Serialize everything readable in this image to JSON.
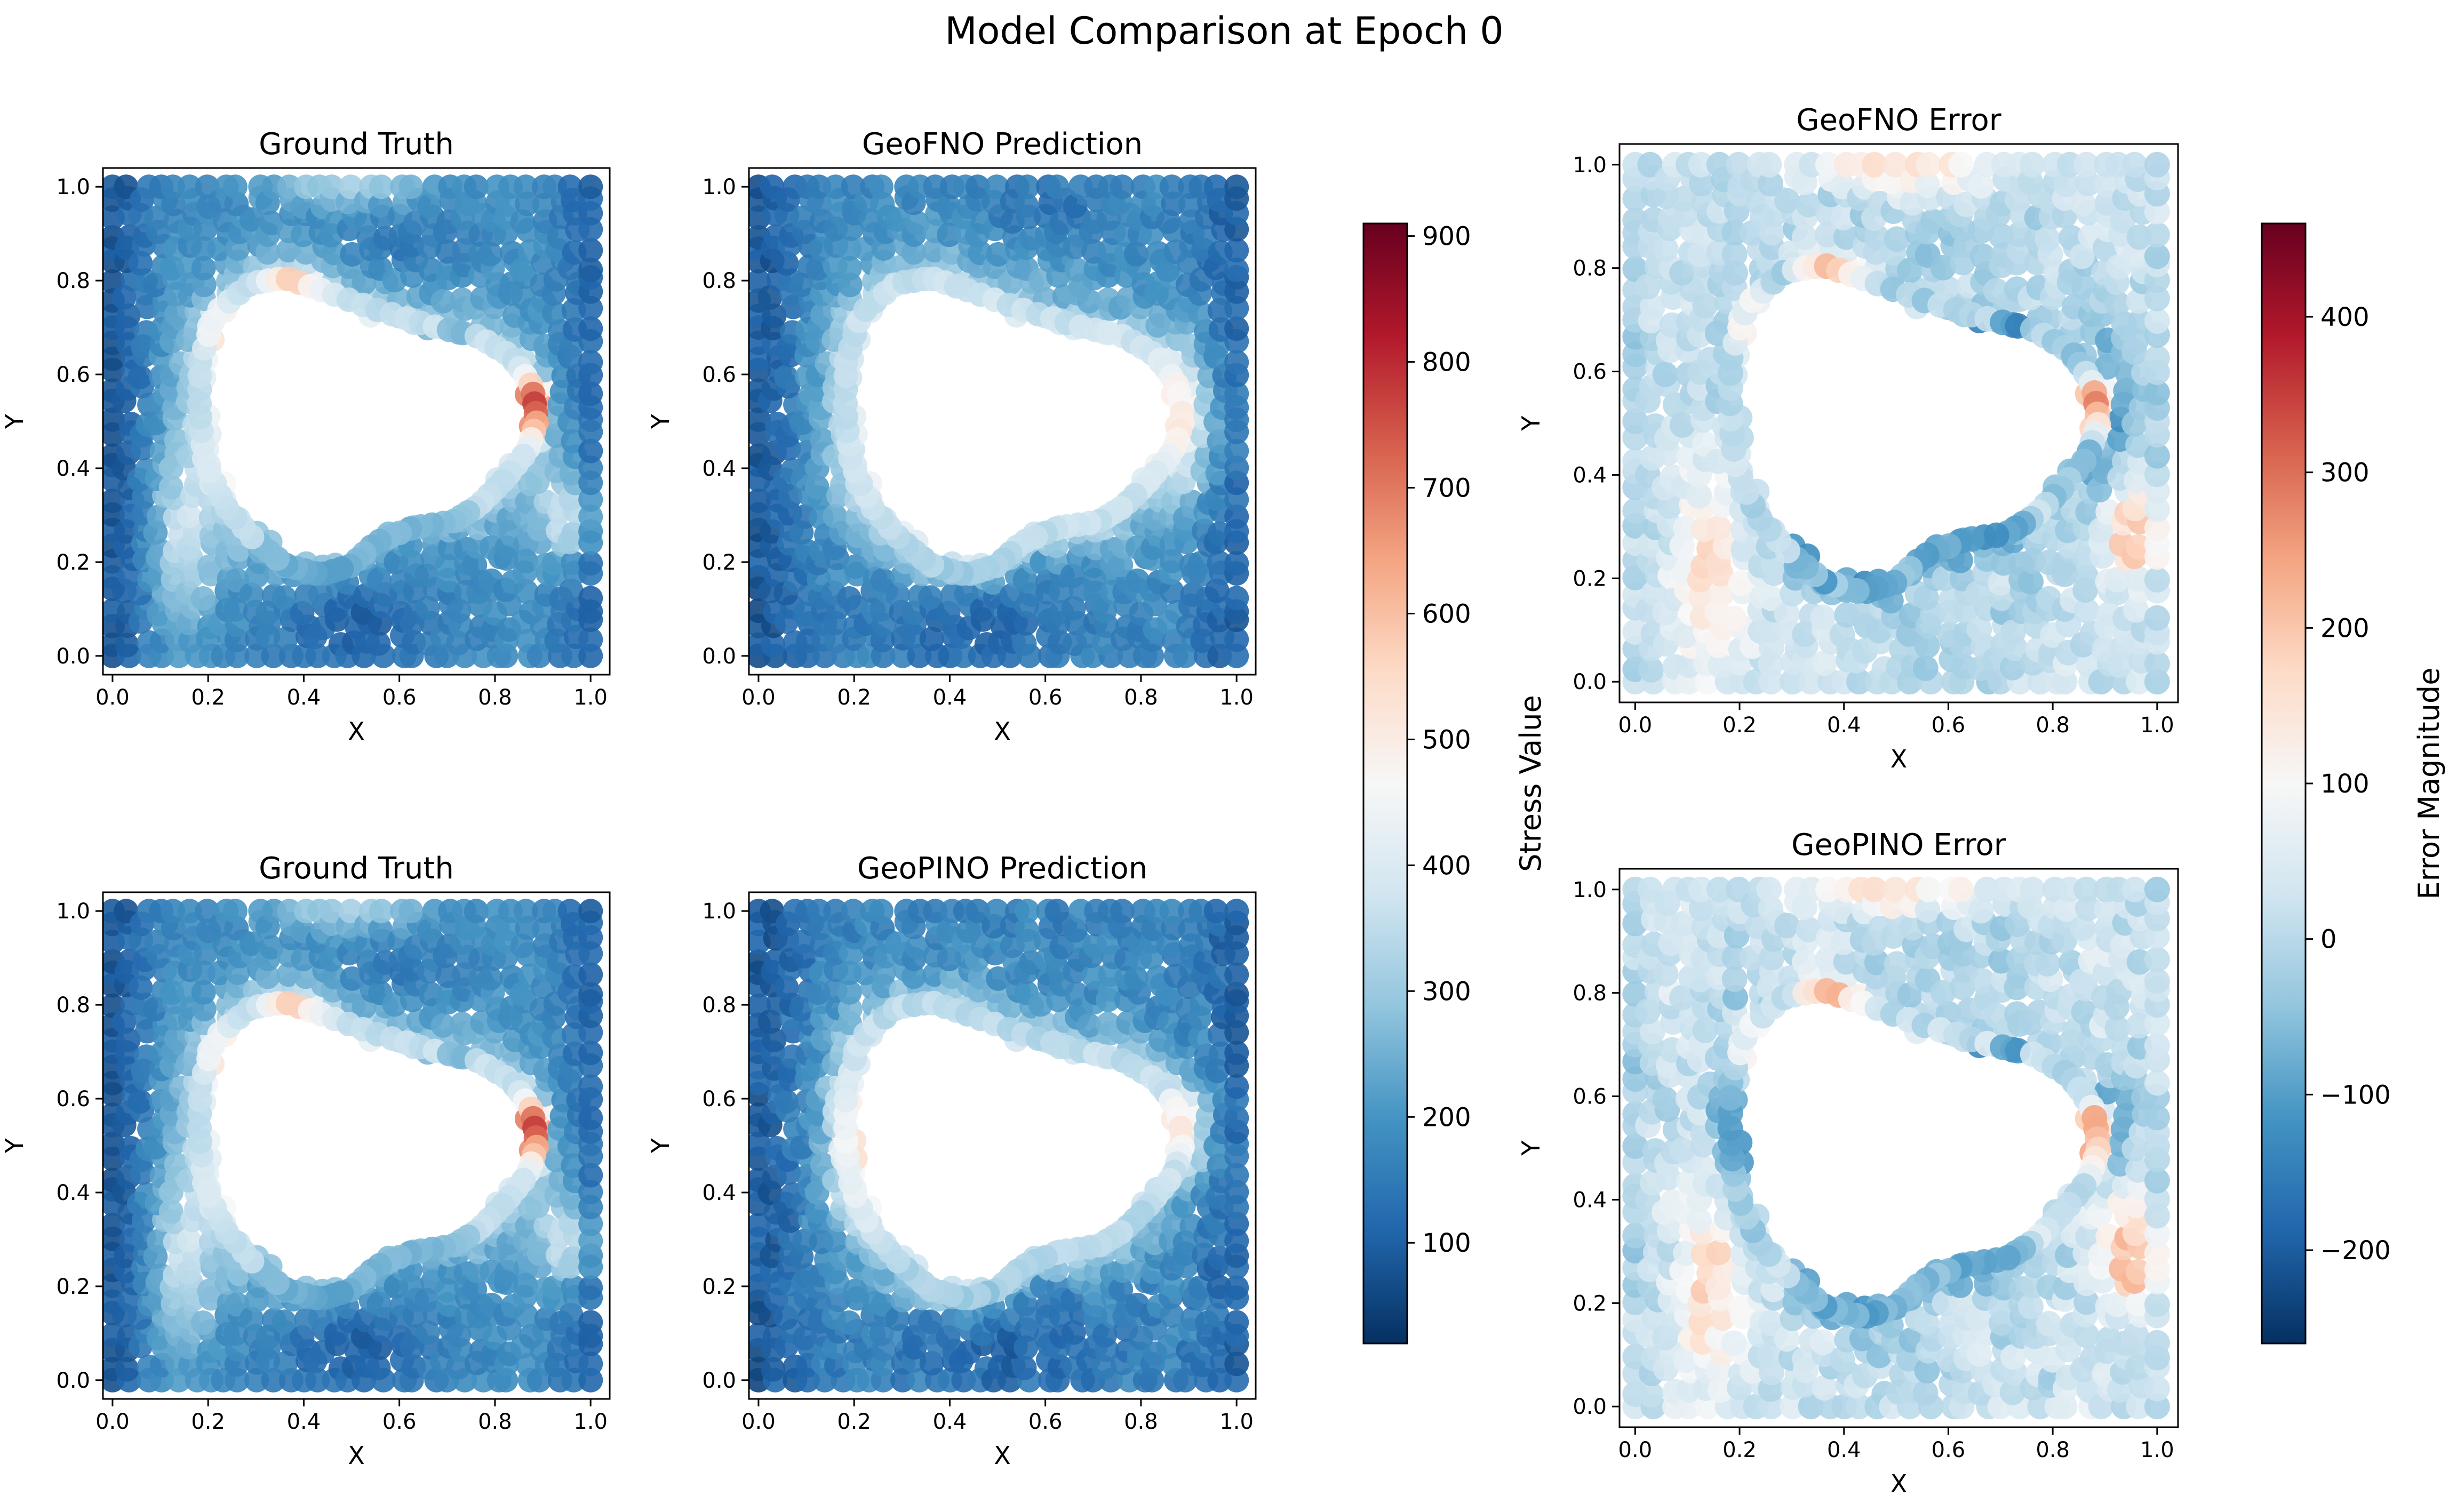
{
  "figure": {
    "title": "Model Comparison at Epoch 0"
  },
  "colors": {
    "rdbu": [
      "#053061",
      "#2166ac",
      "#4393c3",
      "#92c5de",
      "#d1e5f0",
      "#f7f7f7",
      "#fddbc7",
      "#f4a582",
      "#d6604d",
      "#b2182b",
      "#67001f"
    ]
  },
  "chart_data": [
    {
      "id": "gt_top",
      "type": "scatter",
      "title": "Ground Truth",
      "xlabel": "X",
      "ylabel": "Y",
      "xlim": [
        -0.02,
        1.04
      ],
      "ylim": [
        -0.04,
        1.04
      ],
      "xticks": [
        "0.0",
        "0.2",
        "0.4",
        "0.6",
        "0.8",
        "1.0"
      ],
      "yticks": [
        "0.0",
        "0.2",
        "0.4",
        "0.6",
        "0.8",
        "1.0"
      ],
      "field": "stress",
      "variant": "truth",
      "colorbar": "stress",
      "note_values": "Stress values on a ~30x30 point grid over the unit square with an irregular hole; scale 20-910"
    },
    {
      "id": "geofno_pred",
      "type": "scatter",
      "title": "GeoFNO Prediction",
      "xlabel": "X",
      "ylabel": "Y",
      "xlim": [
        -0.02,
        1.04
      ],
      "ylim": [
        -0.04,
        1.04
      ],
      "xticks": [
        "0.0",
        "0.2",
        "0.4",
        "0.6",
        "0.8",
        "1.0"
      ],
      "yticks": [
        "0.0",
        "0.2",
        "0.4",
        "0.6",
        "0.8",
        "1.0"
      ],
      "field": "stress",
      "variant": "fno",
      "colorbar": "stress"
    },
    {
      "id": "gt_bottom",
      "type": "scatter",
      "title": "Ground Truth",
      "xlabel": "X",
      "ylabel": "Y",
      "xlim": [
        -0.02,
        1.04
      ],
      "ylim": [
        -0.04,
        1.04
      ],
      "xticks": [
        "0.0",
        "0.2",
        "0.4",
        "0.6",
        "0.8",
        "1.0"
      ],
      "yticks": [
        "0.0",
        "0.2",
        "0.4",
        "0.6",
        "0.8",
        "1.0"
      ],
      "field": "stress",
      "variant": "truth",
      "colorbar": "stress"
    },
    {
      "id": "geopino_pred",
      "type": "scatter",
      "title": "GeoPINO Prediction",
      "xlabel": "X",
      "ylabel": "Y",
      "xlim": [
        -0.02,
        1.04
      ],
      "ylim": [
        -0.04,
        1.04
      ],
      "xticks": [
        "0.0",
        "0.2",
        "0.4",
        "0.6",
        "0.8",
        "1.0"
      ],
      "yticks": [
        "0.0",
        "0.2",
        "0.4",
        "0.6",
        "0.8",
        "1.0"
      ],
      "field": "stress",
      "variant": "pino",
      "colorbar": "stress"
    },
    {
      "id": "geofno_err",
      "type": "scatter",
      "title": "GeoFNO Error",
      "xlabel": "X",
      "ylabel": "Y",
      "xlim": [
        -0.03,
        1.04
      ],
      "ylim": [
        -0.04,
        1.04
      ],
      "xticks": [
        "0.0",
        "0.2",
        "0.4",
        "0.6",
        "0.8",
        "1.0"
      ],
      "yticks": [
        "0.0",
        "0.2",
        "0.4",
        "0.6",
        "0.8",
        "1.0"
      ],
      "field": "error",
      "variant": "fno",
      "colorbar": "error"
    },
    {
      "id": "geopino_err",
      "type": "scatter",
      "title": "GeoPINO Error",
      "xlabel": "X",
      "ylabel": "Y",
      "xlim": [
        -0.03,
        1.04
      ],
      "ylim": [
        -0.04,
        1.04
      ],
      "xticks": [
        "0.0",
        "0.2",
        "0.4",
        "0.6",
        "0.8",
        "1.0"
      ],
      "yticks": [
        "0.0",
        "0.2",
        "0.4",
        "0.6",
        "0.8",
        "1.0"
      ],
      "field": "error",
      "variant": "pino",
      "colorbar": "error"
    }
  ],
  "colorbars": {
    "stress": {
      "label": "Stress Value",
      "range": [
        20,
        910
      ],
      "ticks": [
        100,
        200,
        300,
        400,
        500,
        600,
        700,
        800,
        900
      ],
      "tick_labels": [
        "100",
        "200",
        "300",
        "400",
        "500",
        "600",
        "700",
        "800",
        "900"
      ]
    },
    "error": {
      "label": "Error Magnitude",
      "range": [
        -260,
        460
      ],
      "ticks": [
        -200,
        -100,
        0,
        100,
        200,
        300,
        400
      ],
      "tick_labels": [
        "−200",
        "−100",
        "0",
        "100",
        "200",
        "300",
        "400"
      ]
    }
  }
}
